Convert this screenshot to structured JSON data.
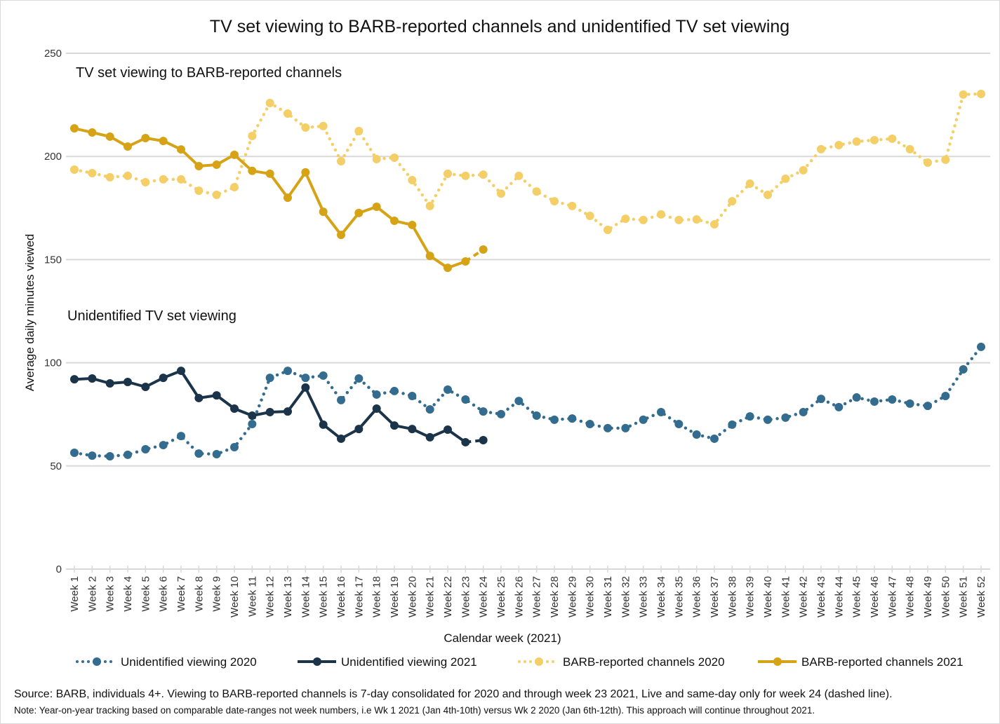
{
  "chart_data": {
    "type": "line",
    "title": "TV set viewing to BARB-reported channels and unidentified TV set viewing",
    "xlabel": "Calendar week (2021)",
    "ylabel": "Average daily minutes viewed",
    "ylim": [
      0,
      250
    ],
    "yticks": [
      0,
      50,
      100,
      150,
      200,
      250
    ],
    "grid": true,
    "legend_position": "bottom",
    "annotations": [
      {
        "text": "TV set viewing to BARB-reported channels",
        "near_y": 245
      },
      {
        "text": "Unidentified TV set viewing",
        "near_y": 125
      }
    ],
    "categories": [
      "Week 1",
      "Week 2",
      "Week 3",
      "Week 4",
      "Week 5",
      "Week 6",
      "Week 7",
      "Week 8",
      "Week 9",
      "Week 10",
      "Week 11",
      "Week 12",
      "Week 13",
      "Week 14",
      "Week 15",
      "Week 16",
      "Week 17",
      "Week 18",
      "Week 19",
      "Week 20",
      "Week 21",
      "Week 22",
      "Week 23",
      "Week 24",
      "Week 25",
      "Week 26",
      "Week 27",
      "Week 28",
      "Week 29",
      "Week 30",
      "Week 31",
      "Week 32",
      "Week 33",
      "Week 34",
      "Week 35",
      "Week 36",
      "Week 37",
      "Week 38",
      "Week 39",
      "Week 40",
      "Week 41",
      "Week 42",
      "Week 43",
      "Week 44",
      "Week 45",
      "Week 46",
      "Week 47",
      "Week 48",
      "Week 49",
      "Week 50",
      "Week 51",
      "Week 52"
    ],
    "series": [
      {
        "name": "Unidentified viewing 2020",
        "color": "#336c8f",
        "style": "dotted",
        "values": [
          56.4,
          55.0,
          54.7,
          55.4,
          58.1,
          60.1,
          64.5,
          56.0,
          55.7,
          59.1,
          70.3,
          92.7,
          96.1,
          92.7,
          93.8,
          81.9,
          92.4,
          84.6,
          86.3,
          83.9,
          77.4,
          87.0,
          82.2,
          76.4,
          75.1,
          81.5,
          74.4,
          72.4,
          73.0,
          70.3,
          68.3,
          68.3,
          72.4,
          76.1,
          70.3,
          65.2,
          63.2,
          70.0,
          74.0,
          72.4,
          73.4,
          76.1,
          82.5,
          78.5,
          83.2,
          81.2,
          82.2,
          80.2,
          79.1,
          83.9,
          96.8,
          107.7
        ]
      },
      {
        "name": "Unidentified viewing 2021",
        "color": "#1b3449",
        "style": "solid",
        "dashed_last_segment": true,
        "values": [
          92.0,
          92.4,
          90.0,
          90.7,
          88.3,
          92.7,
          96.1,
          82.9,
          84.2,
          77.8,
          74.4,
          76.1,
          76.4,
          88.0,
          70.0,
          63.2,
          67.9,
          77.8,
          69.6,
          67.9,
          63.9,
          67.6,
          61.5,
          62.5
        ]
      },
      {
        "name": "BARB-reported channels 2020",
        "color": "#f4ce66",
        "style": "dotted",
        "values": [
          193.6,
          191.9,
          189.9,
          190.6,
          187.5,
          188.9,
          188.9,
          183.4,
          181.4,
          185.1,
          209.9,
          225.9,
          220.8,
          214.0,
          214.7,
          197.7,
          212.3,
          198.7,
          199.4,
          188.5,
          176.0,
          191.6,
          190.6,
          191.2,
          182.0,
          190.6,
          183.0,
          178.3,
          176.0,
          171.2,
          164.4,
          169.8,
          169.2,
          171.9,
          169.2,
          169.5,
          167.1,
          178.3,
          186.8,
          181.4,
          189.2,
          193.3,
          203.5,
          205.5,
          207.2,
          207.9,
          208.6,
          203.5,
          197.0,
          198.4,
          230.0,
          230.3
        ]
      },
      {
        "name": "BARB-reported channels 2021",
        "color": "#d6a317",
        "style": "solid",
        "dashed_last_segment": true,
        "values": [
          213.6,
          211.6,
          209.6,
          204.8,
          208.9,
          207.5,
          203.4,
          195.3,
          196.0,
          200.8,
          193.0,
          191.6,
          180.0,
          192.3,
          173.2,
          162.0,
          172.6,
          175.6,
          168.8,
          166.8,
          151.8,
          146.0,
          149.1,
          154.9
        ]
      }
    ]
  },
  "footer": {
    "source": "Source: BARB, individuals 4+. Viewing to BARB-reported channels is 7-day consolidated for 2020 and through week 23 2021, Live and same-day only for week 24 (dashed line).",
    "note": "Note: Year-on-year tracking based on comparable date-ranges not week numbers, i.e Wk 1 2021 (Jan 4th-10th) versus Wk 2 2020 (Jan 6th-12th). This approach will continue throughout 2021."
  }
}
